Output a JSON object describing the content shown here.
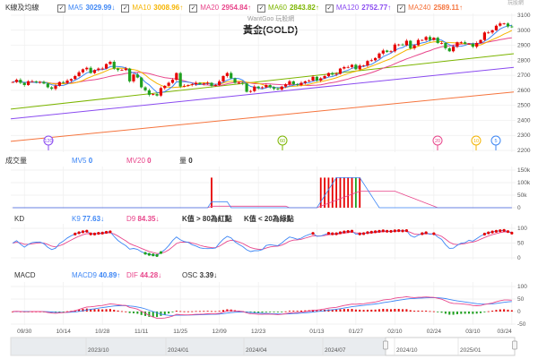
{
  "header": {
    "section_label": "K線及均線",
    "ma": [
      {
        "label": "MA5",
        "value": "3029.99",
        "arrow": "↓",
        "color": "#3d86f5"
      },
      {
        "label": "MA10",
        "value": "3008.96",
        "arrow": "↑",
        "color": "#f5b400"
      },
      {
        "label": "MA20",
        "value": "2954.84",
        "arrow": "↑",
        "color": "#e8468b"
      },
      {
        "label": "MA60",
        "value": "2843.82",
        "arrow": "↑",
        "color": "#7cb500"
      },
      {
        "label": "MA120",
        "value": "2752.77",
        "arrow": "↑",
        "color": "#8a4bf0"
      },
      {
        "label": "MA240",
        "value": "2589.11",
        "arrow": "↑",
        "color": "#f5743d"
      }
    ],
    "watermark": "WantGoo 玩股網",
    "logo_text": "玩股網",
    "title": "黃金(GOLD)"
  },
  "volume_header": {
    "label": "成交量",
    "mv5": "MV5",
    "mv5_value": "0",
    "mv20": "MV20",
    "mv20_value": "0",
    "vol": "量",
    "vol_value": "0"
  },
  "kd_header": {
    "label": "KD",
    "k": "K9",
    "k_value": "77.63",
    "k_arrow": "↓",
    "d": "D9",
    "d_value": "84.35",
    "d_arrow": "↓",
    "note1": "K值 > 80為紅點",
    "note2": "K值 < 20為綠點"
  },
  "macd_header": {
    "label": "MACD",
    "macd": "MACD9",
    "macd_value": "40.89",
    "macd_arrow": "↑",
    "dif": "DIF",
    "dif_value": "44.28",
    "dif_arrow": "↓",
    "osc": "OSC",
    "osc_value": "3.39",
    "osc_arrow": "↓"
  },
  "ma_markers": [
    "120",
    "60",
    "20",
    "10",
    "5"
  ],
  "navigator": {
    "labels": [
      "2023/10",
      "2024/01",
      "2024/04",
      "2024/07",
      "2024/10",
      "2025/01"
    ]
  },
  "chart_data": {
    "type": "candlestick",
    "start_date": "2024-09-25",
    "close": [
      2655,
      2670,
      2650,
      2635,
      2660,
      2660,
      2655,
      2655,
      2645,
      2620,
      2610,
      2630,
      2655,
      2650,
      2665,
      2675,
      2695,
      2720,
      2740,
      2750,
      2715,
      2735,
      2745,
      2745,
      2775,
      2790,
      2745,
      2735,
      2735,
      2745,
      2660,
      2705,
      2685,
      2620,
      2600,
      2570,
      2575,
      2565,
      2615,
      2630,
      2650,
      2670,
      2715,
      2625,
      2630,
      2635,
      2640,
      2650,
      2640,
      2645,
      2650,
      2630,
      2635,
      2660,
      2695,
      2715,
      2680,
      2650,
      2650,
      2645,
      2590,
      2595,
      2625,
      2615,
      2620,
      2635,
      2620,
      2610,
      2605,
      2625,
      2640,
      2660,
      2640,
      2635,
      2650,
      2660,
      2665,
      2690,
      2665,
      2680,
      2695,
      2715,
      2705,
      2710,
      2745,
      2755,
      2755,
      2770,
      2740,
      2765,
      2765,
      2795,
      2800,
      2815,
      2845,
      2865,
      2855,
      2860,
      2905,
      2905,
      2900,
      2930,
      2880,
      2900,
      2935,
      2935,
      2955,
      2935,
      2950,
      2915,
      2915,
      2880,
      2860,
      2890,
      2920,
      2920,
      2910,
      2910,
      2890,
      2915,
      2935,
      2985,
      2985,
      3000,
      3030,
      3045,
      3045,
      3025,
      3020
    ],
    "long_ma": {
      "MA60": [
        2475,
        2844
      ],
      "MA120": [
        2410,
        2753
      ],
      "MA240": [
        2260,
        2589
      ]
    },
    "volume": [
      {
        "date": "12/05",
        "value": 120000
      },
      {
        "date": "01/14",
        "value": 120000
      },
      {
        "date": "01/15",
        "value": 120000
      },
      {
        "date": "01/16",
        "value": 120000
      },
      {
        "date": "01/17",
        "value": 120000
      },
      {
        "date": "01/20",
        "value": 120000
      },
      {
        "date": "01/21",
        "value": 120000
      },
      {
        "date": "01/22",
        "value": 120000
      },
      {
        "date": "01/23",
        "value": 120000
      },
      {
        "date": "01/24",
        "value": 120000
      },
      {
        "date": "01/27",
        "value": 120000
      },
      {
        "date": "01/28",
        "value": 120000
      }
    ],
    "x_ticks": [
      "09/30",
      "10/14",
      "10/28",
      "11/11",
      "11/25",
      "12/09",
      "12/23",
      "01/13",
      "01/27",
      "02/10",
      "02/24",
      "03/10",
      "03/24"
    ],
    "price_axis": [
      3100,
      3000,
      2900,
      2800,
      2700,
      2600,
      2500,
      2400,
      2300,
      2200
    ],
    "volume_axis": [
      "150k",
      "100k",
      "50k",
      "0"
    ],
    "kd_axis": [
      100,
      50,
      0
    ],
    "macd_axis": [
      100,
      50,
      0,
      -50
    ],
    "up_color": "#e60000",
    "down_color": "#1fa01f"
  }
}
